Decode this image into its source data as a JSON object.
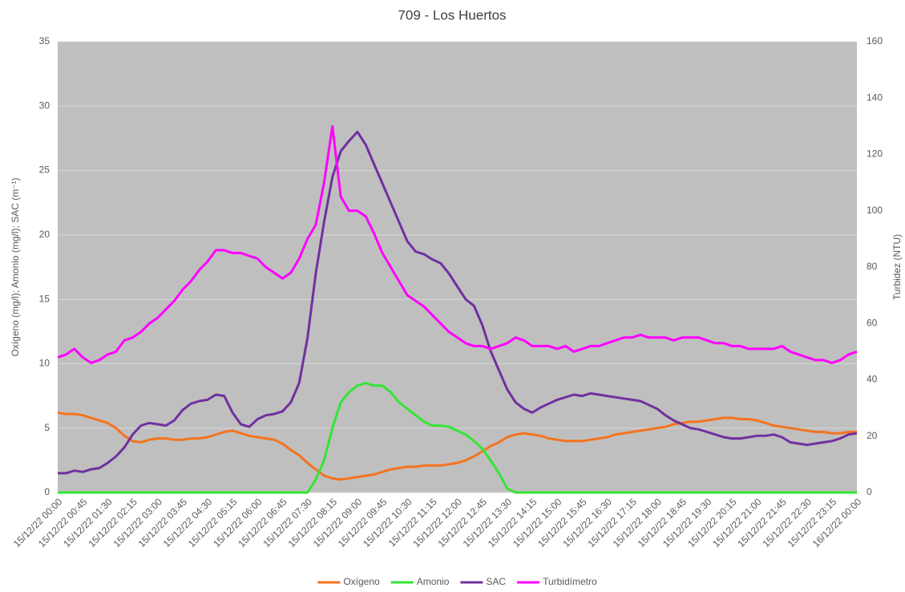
{
  "chart_data": {
    "type": "line",
    "title": "709 - Los Huertos",
    "y_label": "Oxígeno (mg/l); Amonio (mg/l); SAC (m⁻¹)",
    "y2_label": "Turbidez (NTU)",
    "categories": [
      "15/12/22 00:00",
      null,
      null,
      "15/12/22 00:45",
      null,
      null,
      "15/12/22 01:30",
      null,
      null,
      "15/12/22 02:15",
      null,
      null,
      "15/12/22 03:00",
      null,
      null,
      "15/12/22 03:45",
      null,
      null,
      "15/12/22 04:30",
      null,
      null,
      "15/12/22 05:15",
      null,
      null,
      "15/12/22 06:00",
      null,
      null,
      "15/12/22 06:45",
      null,
      null,
      "15/12/22 07:30",
      null,
      null,
      "15/12/22 08:15",
      null,
      null,
      "15/12/22 09:00",
      null,
      null,
      "15/12/22 09:45",
      null,
      null,
      "15/12/22 10:30",
      null,
      null,
      "15/12/22 11:15",
      null,
      null,
      "15/12/22 12:00",
      null,
      null,
      "15/12/22 12:45",
      null,
      null,
      "15/12/22 13:30",
      null,
      null,
      "15/12/22 14:15",
      null,
      null,
      "15/12/22 15:00",
      null,
      null,
      "15/12/22 15:45",
      null,
      null,
      "15/12/22 16:30",
      null,
      null,
      "15/12/22 17:15",
      null,
      null,
      "15/12/22 18:00",
      null,
      null,
      "15/12/22 18:45",
      null,
      null,
      "15/12/22 19:30",
      null,
      null,
      "15/12/22 20:15",
      null,
      null,
      "15/12/22 21:00",
      null,
      null,
      "15/12/22 21:45",
      null,
      null,
      "15/12/22 22:30",
      null,
      null,
      "15/12/22 23:15",
      null,
      null,
      "16/12/22 00:00"
    ],
    "series": [
      {
        "name": "Oxígeno",
        "color": "#f4731f",
        "values": [
          6.2,
          6.1,
          6.1,
          6.0,
          5.8,
          5.6,
          5.4,
          5.0,
          4.4,
          4.0,
          3.9,
          4.1,
          4.2,
          4.2,
          4.1,
          4.1,
          4.2,
          4.2,
          4.3,
          4.5,
          4.7,
          4.8,
          4.6,
          4.4,
          4.3,
          4.2,
          4.1,
          3.8,
          3.3,
          2.9,
          2.3,
          1.8,
          1.3,
          1.1,
          1.0,
          1.1,
          1.2,
          1.3,
          1.4,
          1.6,
          1.8,
          1.9,
          2.0,
          2.0,
          2.1,
          2.1,
          2.1,
          2.2,
          2.3,
          2.5,
          2.8,
          3.2,
          3.6,
          3.9,
          4.3,
          4.5,
          4.6,
          4.5,
          4.4,
          4.2,
          4.1,
          4.0,
          4.0,
          4.0,
          4.1,
          4.2,
          4.3,
          4.5,
          4.6,
          4.7,
          4.8,
          4.9,
          5.0,
          5.1,
          5.3,
          5.4,
          5.5,
          5.5,
          5.6,
          5.7,
          5.8,
          5.8,
          5.7,
          5.7,
          5.6,
          5.4,
          5.2,
          5.1,
          5.0,
          4.9,
          4.8,
          4.7,
          4.7,
          4.6,
          4.6,
          4.7,
          4.7
        ]
      },
      {
        "name": "Amonio",
        "color": "#33e533",
        "values": [
          0,
          0,
          0,
          0,
          0,
          0,
          0,
          0,
          0,
          0,
          0,
          0,
          0,
          0,
          0,
          0,
          0,
          0,
          0,
          0,
          0,
          0,
          0,
          0,
          0,
          0,
          0,
          0,
          0,
          0,
          0,
          1.0,
          2.5,
          5,
          7,
          7.8,
          8.3,
          8.5,
          8.3,
          8.3,
          7.8,
          7.0,
          6.5,
          6.0,
          5.5,
          5.2,
          5.2,
          5.1,
          4.8,
          4.5,
          4.0,
          3.4,
          2.5,
          1.5,
          0.3,
          0,
          0,
          0,
          0,
          0,
          0,
          0,
          0,
          0,
          0,
          0,
          0,
          0,
          0,
          0,
          0,
          0,
          0,
          0,
          0,
          0,
          0,
          0,
          0,
          0,
          0,
          0,
          0,
          0,
          0,
          0,
          0,
          0,
          0,
          0,
          0,
          0,
          0,
          0,
          0,
          0,
          0
        ]
      },
      {
        "name": "SAC",
        "color": "#7030a0",
        "values": [
          1.5,
          1.5,
          1.7,
          1.6,
          1.8,
          1.9,
          2.3,
          2.8,
          3.5,
          4.5,
          5.2,
          5.4,
          5.3,
          5.2,
          5.6,
          6.4,
          6.9,
          7.1,
          7.2,
          7.6,
          7.5,
          6.2,
          5.3,
          5.1,
          5.7,
          6.0,
          6.1,
          6.3,
          7.0,
          8.5,
          12,
          17,
          21,
          24.5,
          26.5,
          27.3,
          28.0,
          27,
          25.5,
          24,
          22.5,
          21,
          19.5,
          18.7,
          18.5,
          18.1,
          17.8,
          17,
          16,
          15,
          14.5,
          13,
          11,
          9.5,
          8,
          7,
          6.5,
          6.2,
          6.6,
          6.9,
          7.2,
          7.4,
          7.6,
          7.5,
          7.7,
          7.6,
          7.5,
          7.4,
          7.3,
          7.2,
          7.1,
          6.8,
          6.5,
          6.0,
          5.6,
          5.3,
          5.0,
          4.9,
          4.7,
          4.5,
          4.3,
          4.2,
          4.2,
          4.3,
          4.4,
          4.4,
          4.5,
          4.3,
          3.9,
          3.8,
          3.7,
          3.8,
          3.9,
          4.0,
          4.2,
          4.5,
          4.6
        ]
      },
      {
        "name": "Turbidímetro",
        "color": "#ff00ff",
        "axis": "y2",
        "values": [
          48,
          49,
          51,
          48,
          46,
          47,
          49,
          50,
          54,
          55,
          57,
          60,
          62,
          65,
          68,
          72,
          75,
          79,
          82,
          86,
          86,
          85,
          85,
          84,
          83,
          80,
          78,
          76,
          78,
          83,
          90,
          95,
          110,
          130,
          105,
          100,
          100,
          98,
          92,
          85,
          80,
          75,
          70,
          68,
          66,
          63,
          60,
          57,
          55,
          53,
          52,
          52,
          51,
          52,
          53,
          55,
          54,
          52,
          52,
          52,
          51,
          52,
          50,
          51,
          52,
          52,
          53,
          54,
          55,
          55,
          56,
          55,
          55,
          55,
          54,
          55,
          55,
          55,
          54,
          53,
          53,
          52,
          52,
          51,
          51,
          51,
          51,
          52,
          50,
          49,
          48,
          47,
          47,
          46,
          47,
          49,
          50
        ]
      }
    ],
    "ylim": [
      0,
      35
    ],
    "yticks": [
      0,
      5,
      10,
      15,
      20,
      25,
      30,
      35
    ],
    "y2lim": [
      0,
      160
    ],
    "y2ticks": [
      0,
      20,
      40,
      60,
      80,
      100,
      120,
      140,
      160
    ],
    "grid": true,
    "legend": "bottom"
  }
}
